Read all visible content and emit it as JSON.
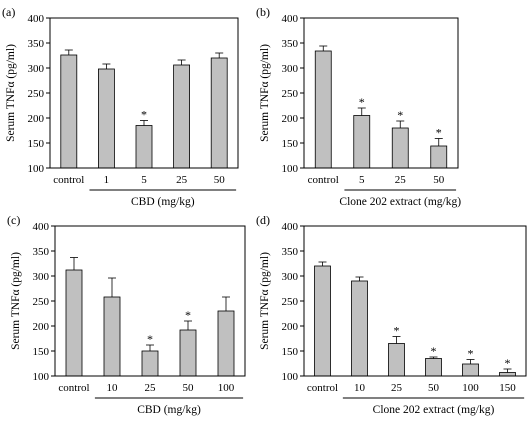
{
  "chart_data": [
    {
      "panel_label": "(a)",
      "type": "bar",
      "categories": [
        "control",
        "1",
        "5",
        "25",
        "50"
      ],
      "values": [
        326,
        298,
        185,
        306,
        320
      ],
      "errors": [
        10,
        10,
        10,
        10,
        10
      ],
      "significant": [
        false,
        false,
        true,
        false,
        false
      ],
      "significance_marker": "*",
      "ylim": [
        100,
        400
      ],
      "yticks": [
        100,
        150,
        200,
        250,
        300,
        350,
        400
      ],
      "ylabel": "Serum TNFα (pg/ml)",
      "xlabel": "CBD (mg/kg)",
      "xlabel_group_start": 1,
      "bar_color": "#c0c0c0"
    },
    {
      "panel_label": "(b)",
      "type": "bar",
      "categories": [
        "control",
        "5",
        "25",
        "50"
      ],
      "values": [
        334,
        205,
        180,
        144
      ],
      "errors": [
        10,
        15,
        14,
        15
      ],
      "significant": [
        false,
        true,
        true,
        true
      ],
      "significance_marker": "*",
      "ylim": [
        100,
        400
      ],
      "yticks": [
        100,
        150,
        200,
        250,
        300,
        350,
        400
      ],
      "ylabel": "Serum TNFα (pg/ml)",
      "xlabel": "Clone 202 extract (mg/kg)",
      "xlabel_group_start": 1,
      "bar_color": "#c0c0c0"
    },
    {
      "panel_label": "(c)",
      "type": "bar",
      "categories": [
        "control",
        "10",
        "25",
        "50",
        "100"
      ],
      "values": [
        312,
        258,
        150,
        192,
        230
      ],
      "errors": [
        25,
        38,
        12,
        18,
        28
      ],
      "significant": [
        false,
        false,
        true,
        true,
        false
      ],
      "significance_marker": "*",
      "ylim": [
        100,
        400
      ],
      "yticks": [
        100,
        150,
        200,
        250,
        300,
        350,
        400
      ],
      "ylabel": "Serum TNFα (pg/ml)",
      "xlabel": "CBD (mg/kg)",
      "xlabel_group_start": 1,
      "bar_color": "#c0c0c0"
    },
    {
      "panel_label": "(d)",
      "type": "bar",
      "categories": [
        "control",
        "10",
        "25",
        "50",
        "100",
        "150"
      ],
      "values": [
        320,
        290,
        165,
        135,
        124,
        107
      ],
      "errors": [
        8,
        8,
        14,
        3,
        9,
        7
      ],
      "significant": [
        false,
        false,
        true,
        true,
        true,
        true
      ],
      "significance_marker": "*",
      "ylim": [
        100,
        400
      ],
      "yticks": [
        100,
        150,
        200,
        250,
        300,
        350,
        400
      ],
      "ylabel": "Serum TNFα (pg/ml)",
      "xlabel": "Clone 202 extract (mg/kg)",
      "xlabel_group_start": 1,
      "bar_color": "#c0c0c0"
    }
  ]
}
